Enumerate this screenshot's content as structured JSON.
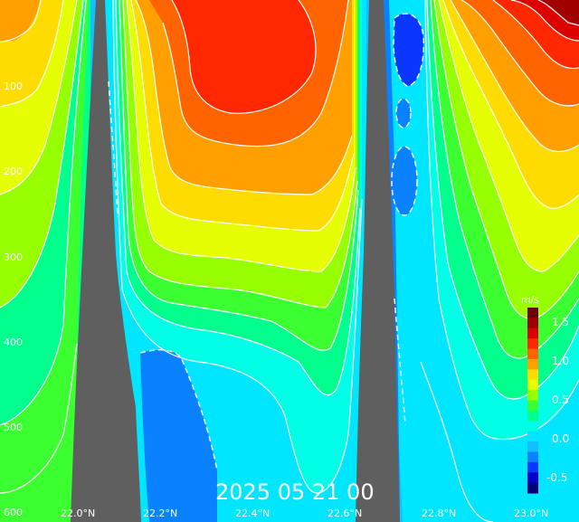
{
  "map": {
    "date_text": "2025 05 21 00",
    "depth_ticks": [
      "100",
      "200",
      "300",
      "400",
      "500",
      "600"
    ],
    "latitude_ticks": [
      "22.0°N",
      "22.2°N",
      "22.4°N",
      "22.6°N",
      "22.8°N",
      "23.0°N"
    ],
    "colorbar": {
      "unit": "m/s",
      "ticks": [
        "1.5",
        "1.0",
        "0.5",
        "0.0",
        "-0.5"
      ],
      "colors": [
        "#00007f",
        "#0000c8",
        "#0a37ff",
        "#0a82ff",
        "#14beff",
        "#00e6ff",
        "#00ffe6",
        "#00ff8c",
        "#3cff32",
        "#96ff00",
        "#e6ff00",
        "#ffdc00",
        "#ffa000",
        "#ff6400",
        "#ff2800",
        "#dc0000",
        "#a00000",
        "#6e0000"
      ]
    },
    "palette": {
      "terrain": "#5f5f5f",
      "contour": "#ffffff"
    }
  }
}
